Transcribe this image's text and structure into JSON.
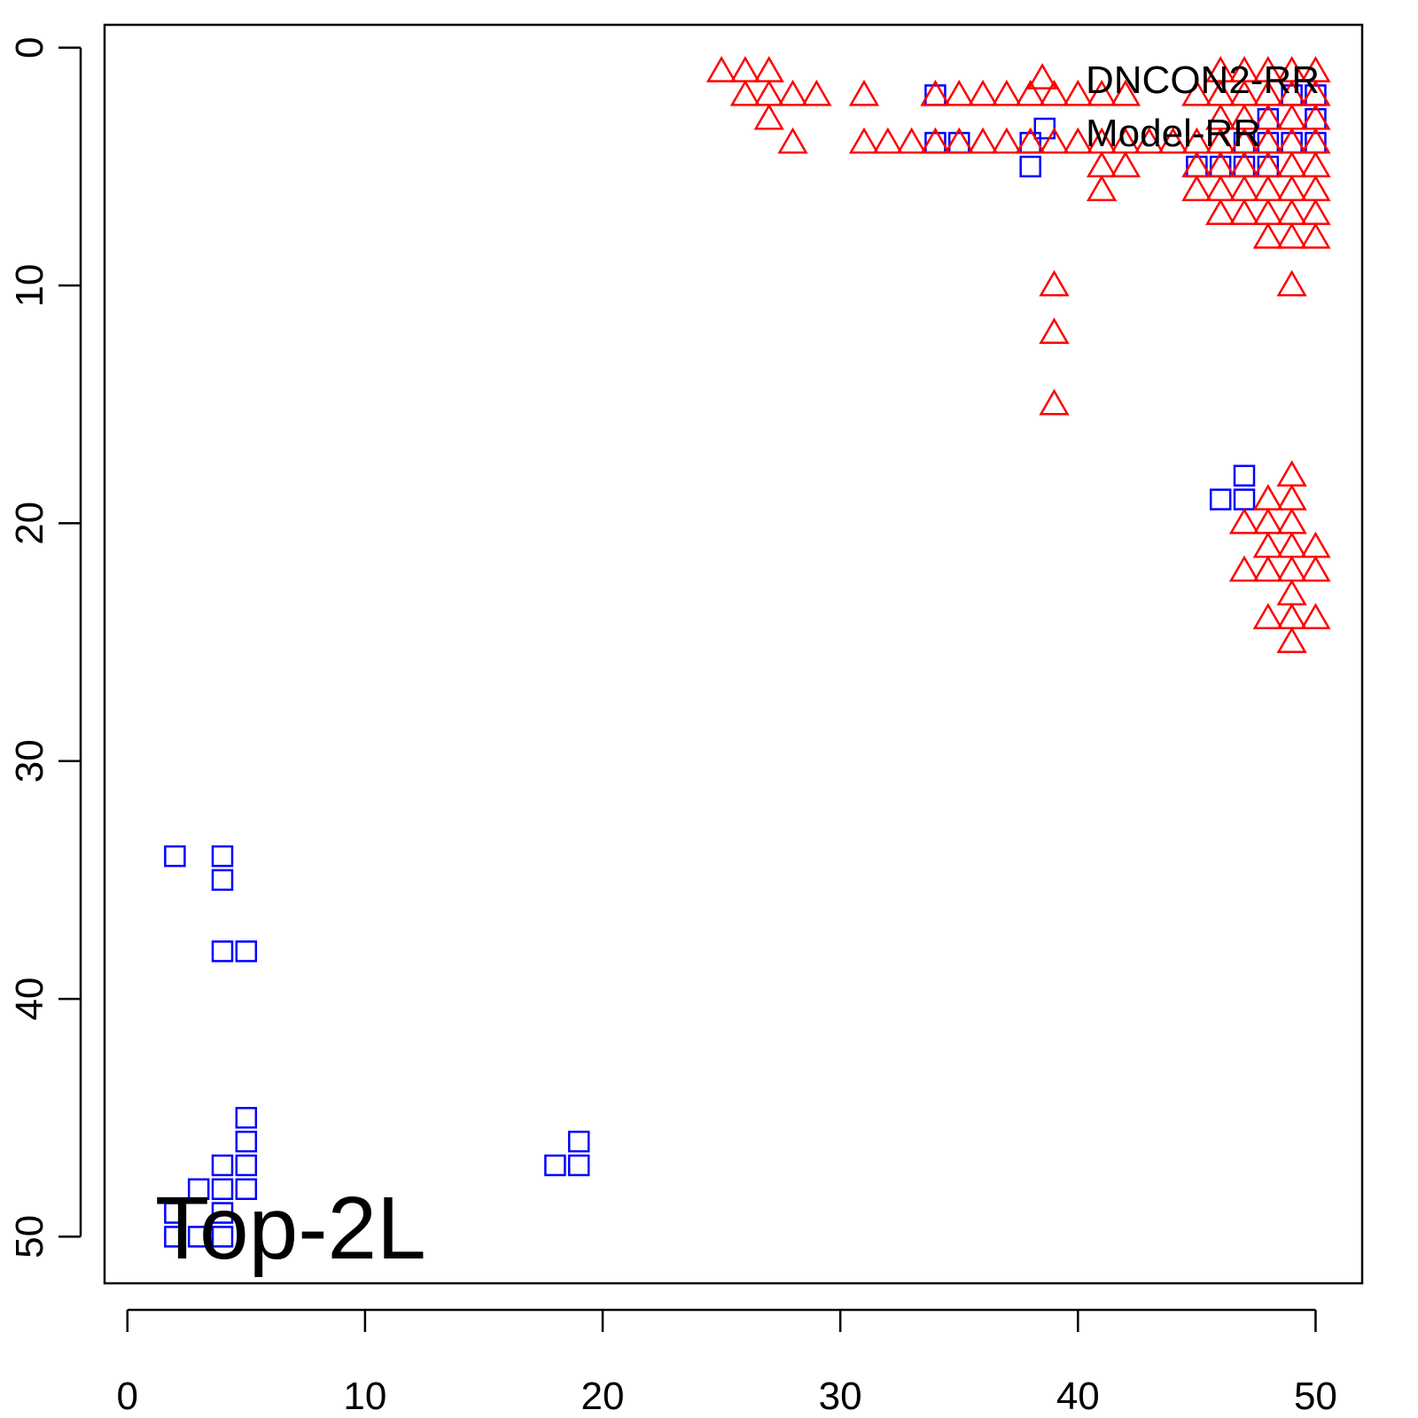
{
  "chart_data": {
    "type": "scatter",
    "xlim": [
      -0.96,
      51.96
    ],
    "ylim": [
      -0.96,
      51.96
    ],
    "y_reversed": true,
    "xticks": [
      0,
      10,
      20,
      30,
      40,
      50
    ],
    "yticks": [
      0,
      10,
      20,
      30,
      40,
      50
    ],
    "legend": "topright",
    "annotation": "Top-2L",
    "series": [
      {
        "name": "DNCON2-RR",
        "color": "#0000ff",
        "marker": "square",
        "x": [
          34,
          34,
          35,
          38,
          38,
          38.6,
          45,
          46,
          47,
          48,
          47,
          48,
          49,
          50,
          50,
          49,
          50,
          48,
          46,
          47,
          47,
          2,
          4,
          4,
          4,
          5,
          5,
          5,
          4,
          5,
          3,
          4,
          5,
          2,
          4,
          2,
          3,
          4,
          18,
          19,
          19
        ],
        "y": [
          2,
          4,
          4,
          4,
          5,
          3.4,
          5,
          5,
          5,
          5,
          4,
          3,
          2,
          2,
          3,
          4,
          4,
          4,
          19,
          18,
          19,
          34,
          34,
          35,
          38,
          38,
          45,
          46,
          47,
          47,
          48,
          48,
          48,
          49,
          49,
          50,
          50,
          50,
          47,
          46,
          47
        ]
      },
      {
        "name": "Model-RR",
        "color": "#ff0000",
        "marker": "triangle",
        "x": [
          25,
          26,
          27,
          46,
          47,
          48,
          49,
          50,
          38.5,
          26,
          27,
          28,
          29,
          31,
          34,
          35,
          36,
          37,
          38,
          39,
          40,
          41,
          42,
          45,
          46,
          47,
          48,
          49,
          50,
          27,
          46,
          47,
          48,
          49,
          50,
          28,
          31,
          32,
          33,
          34,
          35,
          36,
          37,
          38,
          39,
          40,
          41,
          42,
          43,
          44,
          45,
          46,
          47,
          48,
          49,
          50,
          41,
          42,
          45,
          46,
          47,
          48,
          49,
          50,
          41,
          45,
          46,
          47,
          48,
          49,
          50,
          46,
          47,
          48,
          49,
          50,
          48,
          49,
          50,
          39,
          49,
          39,
          39,
          49,
          48,
          49,
          47,
          48,
          49,
          48,
          49,
          50,
          47,
          48,
          49,
          50,
          49,
          48,
          49,
          50,
          49
        ],
        "y": [
          1,
          1,
          1,
          1,
          1,
          1,
          1,
          1,
          1.3,
          2,
          2,
          2,
          2,
          2,
          2,
          2,
          2,
          2,
          2,
          2,
          2,
          2,
          2,
          2,
          2,
          2,
          2,
          2,
          2,
          3,
          3,
          3,
          3,
          3,
          3,
          4,
          4,
          4,
          4,
          4,
          4,
          4,
          4,
          4,
          4,
          4,
          4,
          4,
          4,
          4,
          4,
          4,
          4,
          4,
          4,
          4,
          5,
          5,
          5,
          5,
          5,
          5,
          5,
          5,
          6,
          6,
          6,
          6,
          6,
          6,
          6,
          7,
          7,
          7,
          7,
          7,
          8,
          8,
          8,
          10,
          10,
          12,
          15,
          18,
          19,
          19,
          20,
          20,
          20,
          21,
          21,
          21,
          22,
          22,
          22,
          22,
          23,
          24,
          24,
          24,
          25
        ]
      }
    ]
  }
}
